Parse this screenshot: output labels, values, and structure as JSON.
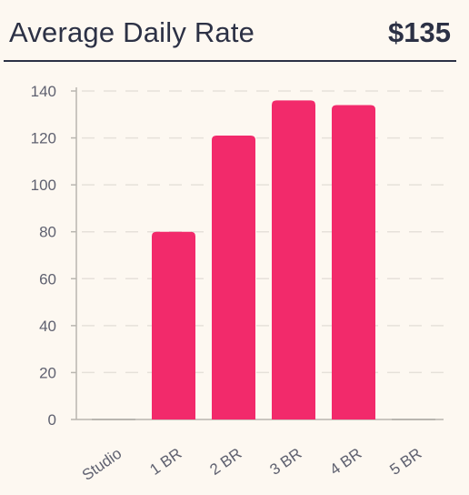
{
  "header": {
    "title": "Average Daily Rate",
    "value": "$135"
  },
  "chart_data": {
    "type": "bar",
    "title": "Average Daily Rate",
    "categories": [
      "Studio",
      "1 BR",
      "2 BR",
      "3 BR",
      "4 BR",
      "5 BR"
    ],
    "values": [
      0,
      80,
      121,
      136,
      134,
      0
    ],
    "ylim": [
      0,
      140
    ],
    "yticks": [
      0,
      20,
      40,
      60,
      80,
      100,
      120,
      140
    ],
    "grid": true,
    "colors": {
      "bar": "#f22a6b",
      "grid": "#e6e1da",
      "axis": "#b9b6b0",
      "text": "#5f6170"
    }
  }
}
